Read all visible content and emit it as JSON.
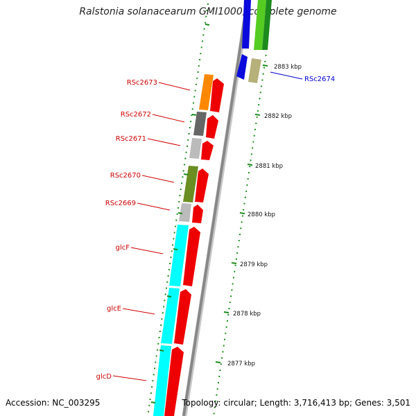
{
  "title": "Ralstonia solanacearum GMI1000, complete genome",
  "footer": {
    "accession": "Accession: NC_003295",
    "topology": "Topology: circular; Length: 3,716,413 bp; Genes: 3,501"
  },
  "ticks": [
    "2883 kbp",
    "2882 kbp",
    "2881 kbp",
    "2880 kbp",
    "2879 kbp",
    "2878 kbp",
    "2877 kbp"
  ],
  "genes": {
    "reverse": [
      "RSc2673",
      "RSc2672",
      "RSc2671",
      "RSc2670",
      "RSc2669",
      "glcF",
      "glcE",
      "glcD"
    ],
    "forward": [
      "RSc2674"
    ]
  },
  "colors": {
    "reverse_label": "#cc0000",
    "forward_label": "#0000cc",
    "tick_marks": "#1a8a1a",
    "backbone": "#888888"
  }
}
